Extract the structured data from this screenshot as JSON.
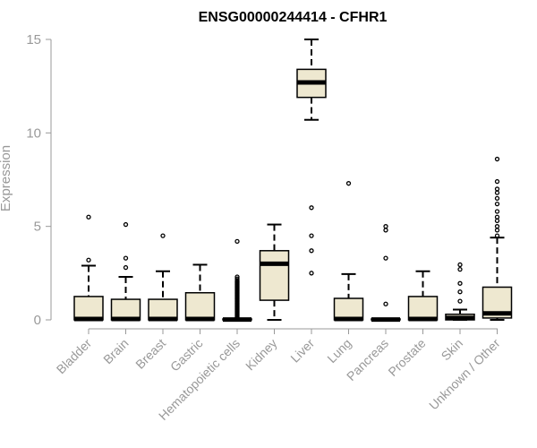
{
  "chart_data": {
    "type": "box",
    "title": "ENSG00000244414 - CFHR1",
    "xlabel": "",
    "ylabel": "Expression",
    "ylim": [
      0,
      15
    ],
    "yticks": [
      "0",
      "5",
      "10",
      "15"
    ],
    "colors": {
      "box_fill": "#EEE8D0",
      "box_stroke": "#000000",
      "axis": "#999999"
    },
    "categories": [
      "Bladder",
      "Brain",
      "Breast",
      "Gastric",
      "Hematopoietic cells",
      "Kidney",
      "Liver",
      "Lung",
      "Pancreas",
      "Prostate",
      "Skin",
      "Unknown / Other"
    ],
    "series": [
      {
        "category": "Bladder",
        "whisker_low": 0,
        "q1": 0,
        "median": 0.05,
        "q3": 1.25,
        "whisker_high": 2.9,
        "outliers": [
          3.2,
          5.5
        ]
      },
      {
        "category": "Brain",
        "whisker_low": 0,
        "q1": 0,
        "median": 0.05,
        "q3": 1.1,
        "whisker_high": 2.3,
        "outliers": [
          2.8,
          3.3,
          5.1
        ]
      },
      {
        "category": "Breast",
        "whisker_low": 0,
        "q1": 0,
        "median": 0.05,
        "q3": 1.1,
        "whisker_high": 2.6,
        "outliers": [
          4.5
        ]
      },
      {
        "category": "Gastric",
        "whisker_low": 0,
        "q1": 0,
        "median": 0.05,
        "q3": 1.45,
        "whisker_high": 2.95,
        "outliers": []
      },
      {
        "category": "Hematopoietic cells",
        "whisker_low": 0,
        "q1": 0,
        "median": 0.02,
        "q3": 0.05,
        "whisker_high": 0.05,
        "outliers": [
          0.1,
          0.15,
          0.2,
          0.25,
          0.3,
          0.35,
          0.4,
          0.45,
          0.5,
          0.55,
          0.6,
          0.65,
          0.7,
          0.75,
          0.8,
          0.85,
          0.9,
          0.95,
          1.0,
          1.05,
          1.1,
          1.15,
          1.2,
          1.25,
          1.3,
          1.35,
          1.4,
          1.45,
          1.5,
          1.55,
          1.6,
          1.65,
          1.7,
          1.75,
          1.8,
          1.85,
          1.9,
          1.95,
          2.0,
          2.05,
          2.1,
          2.2,
          2.3,
          4.2
        ]
      },
      {
        "category": "Kidney",
        "whisker_low": 0,
        "q1": 1.05,
        "median": 3.0,
        "q3": 3.7,
        "whisker_high": 5.1,
        "outliers": []
      },
      {
        "category": "Liver",
        "whisker_low": 10.7,
        "q1": 11.9,
        "median": 12.7,
        "q3": 13.4,
        "whisker_high": 15.0,
        "outliers": [
          2.5,
          3.7,
          4.5,
          6.0
        ]
      },
      {
        "category": "Lung",
        "whisker_low": 0,
        "q1": 0,
        "median": 0.05,
        "q3": 1.15,
        "whisker_high": 2.45,
        "outliers": [
          7.3
        ]
      },
      {
        "category": "Pancreas",
        "whisker_low": 0,
        "q1": 0,
        "median": 0.02,
        "q3": 0.05,
        "whisker_high": 0.05,
        "outliers": [
          0.85,
          3.3,
          4.8,
          5.0
        ]
      },
      {
        "category": "Prostate",
        "whisker_low": 0,
        "q1": 0,
        "median": 0.05,
        "q3": 1.25,
        "whisker_high": 2.6,
        "outliers": []
      },
      {
        "category": "Skin",
        "whisker_low": 0,
        "q1": 0,
        "median": 0.1,
        "q3": 0.3,
        "whisker_high": 0.55,
        "outliers": [
          1.0,
          1.5,
          1.95,
          2.7,
          2.95
        ]
      },
      {
        "category": "Unknown / Other",
        "whisker_low": 0,
        "q1": 0.1,
        "median": 0.35,
        "q3": 1.75,
        "whisker_high": 4.4,
        "outliers": [
          4.5,
          4.8,
          5.0,
          5.3,
          5.5,
          5.8,
          6.2,
          6.5,
          6.8,
          7.0,
          7.4,
          8.6
        ]
      }
    ]
  }
}
